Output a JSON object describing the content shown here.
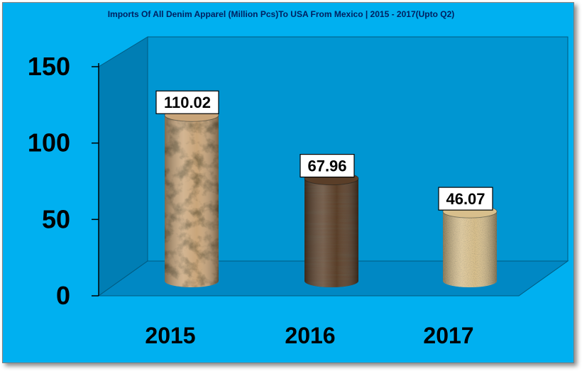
{
  "chart_data": {
    "type": "bar",
    "style": "3d-cylinder",
    "title": "Imports Of All Denim Apparel (Million Pcs)To USA From Mexico | 2015 - 2017(Upto Q2)",
    "categories": [
      "2015",
      "2016",
      "2017"
    ],
    "values": [
      110.02,
      67.96,
      46.07
    ],
    "data_labels": [
      "110.02",
      "67.96",
      "46.07"
    ],
    "y_ticks": [
      "0",
      "50",
      "100",
      "150"
    ],
    "ylim": [
      0,
      150
    ],
    "xlabel": "",
    "ylabel": "",
    "grid": false,
    "legend": "none",
    "colors": {
      "background": "#00b0f0",
      "wall": "#0096d2",
      "side_wall": "#007eb4",
      "floor": "#0088c4",
      "title": "#002060",
      "bars": [
        "#c9a57a",
        "#5a3e28",
        "#d8bf8c"
      ]
    }
  }
}
